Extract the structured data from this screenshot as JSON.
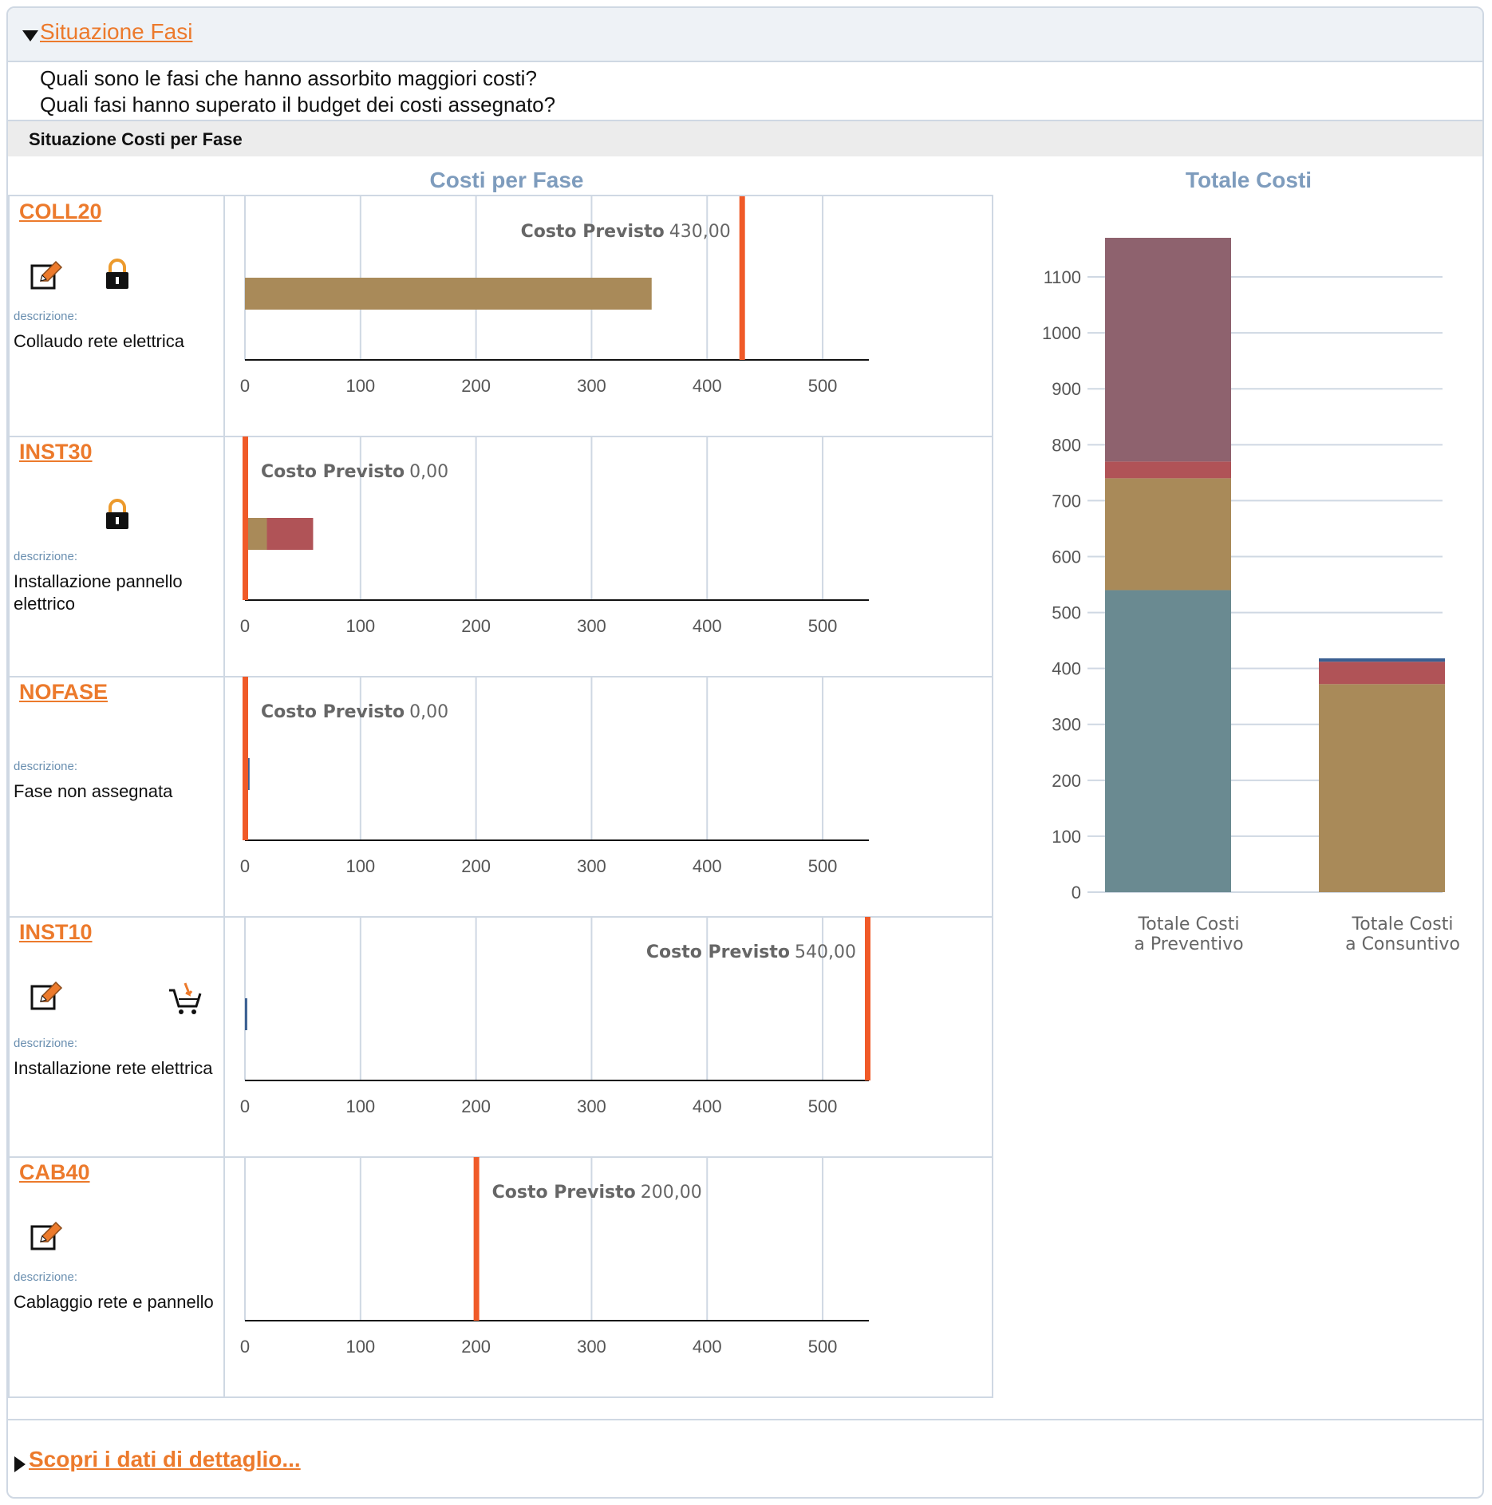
{
  "panel": {
    "title": "Situazione Fasi",
    "questions": [
      "Quali sono le fasi che hanno assorbito maggiori costi?",
      "Quali fasi hanno superato il budget dei costi assegnato?"
    ],
    "section_title": "Situazione Costi per Fase",
    "detail_link": "Scopri i dati di dettaglio..."
  },
  "colors": {
    "seg_tan": "#a98a59",
    "seg_red": "#b05357",
    "seg_blue": "#3a5f91",
    "seg_teal": "#6a8a91",
    "seg_mauve": "#8e626e",
    "budget_line": "#f05a28",
    "link_orange": "#ec7a2c",
    "title_blue": "#7e9cbd"
  },
  "phases": [
    {
      "code": "COLL20",
      "icons": [
        "edit-icon",
        "lock-icon"
      ],
      "desc_label": "descrizione:",
      "desc": "Collaudo rete elettrica",
      "budget_label": "Costo Previsto",
      "budget_text": "430,00"
    },
    {
      "code": "INST30",
      "icons": [
        "lock-icon"
      ],
      "desc_label": "descrizione:",
      "desc": "Installazione pannello elettrico",
      "budget_label": "Costo Previsto",
      "budget_text": "0,00"
    },
    {
      "code": "NOFASE",
      "icons": [],
      "desc_label": "descrizione:",
      "desc": "Fase non assegnata",
      "budget_label": "Costo Previsto",
      "budget_text": "0,00"
    },
    {
      "code": "INST10",
      "icons": [
        "edit-icon",
        "cart-icon"
      ],
      "desc_label": "descrizione:",
      "desc": "Installazione rete elettrica",
      "budget_label": "Costo Previsto",
      "budget_text": "540,00"
    },
    {
      "code": "CAB40",
      "icons": [
        "edit-icon"
      ],
      "desc_label": "descrizione:",
      "desc": "Cablaggio rete e pannello",
      "budget_label": "Costo Previsto",
      "budget_text": "200,00"
    }
  ],
  "chart_data": [
    {
      "type": "bar",
      "orientation": "horizontal",
      "stacked": true,
      "title": "Costi per Fase",
      "categories": [
        "COLL20",
        "INST30",
        "NOFASE",
        "INST10",
        "CAB40"
      ],
      "xlim": [
        0,
        540
      ],
      "xticks": [
        0,
        100,
        200,
        300,
        400,
        500
      ],
      "grid": true,
      "series": [
        {
          "color": "#a98a59",
          "values": [
            352,
            19,
            0,
            0,
            0
          ]
        },
        {
          "color": "#b05357",
          "values": [
            0,
            40,
            0,
            0,
            0
          ]
        },
        {
          "color": "#3a5f91",
          "values": [
            0,
            0,
            4,
            2,
            0
          ]
        }
      ],
      "budget_markers": [
        430,
        0,
        0,
        540,
        200
      ]
    },
    {
      "type": "bar",
      "stacked": true,
      "title": "Totale Costi",
      "categories": [
        "Totale Costi a Preventivo",
        "Totale Costi a Consuntivo"
      ],
      "category_lines": [
        [
          "Totale Costi",
          "a Preventivo"
        ],
        [
          "Totale Costi",
          "a Consuntivo"
        ]
      ],
      "ylim": [
        0,
        1170
      ],
      "yticks": [
        0,
        100,
        200,
        300,
        400,
        500,
        600,
        700,
        800,
        900,
        1000,
        1100
      ],
      "grid": true,
      "series": [
        {
          "color": "#6a8a91",
          "values": [
            540,
            0
          ]
        },
        {
          "color": "#a98a59",
          "values": [
            200,
            372
          ]
        },
        {
          "color": "#b05357",
          "values": [
            30,
            40
          ]
        },
        {
          "color": "#8e626e",
          "values": [
            400,
            0
          ]
        },
        {
          "color": "#3a5f91",
          "values": [
            0,
            6
          ]
        }
      ]
    }
  ]
}
